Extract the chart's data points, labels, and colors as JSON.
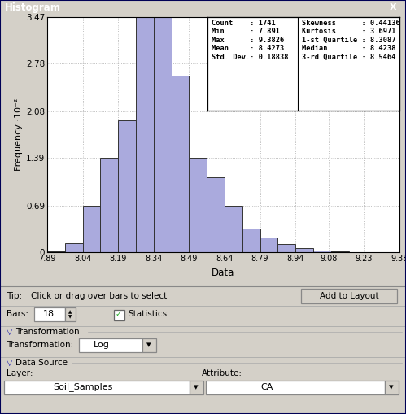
{
  "title": "Histogram",
  "ylabel": "Frequency ·10⁻²",
  "xlabel": "Data",
  "bar_color": "#aaaadd",
  "bar_edge_color": "#333333",
  "xlim": [
    7.89,
    9.38
  ],
  "ylim": [
    0,
    3.47
  ],
  "ytick_vals": [
    0,
    0.69,
    1.39,
    2.08,
    2.78,
    3.47
  ],
  "ytick_labels": [
    "0",
    "0.69",
    "1.39",
    "2.08",
    "2.78",
    "3.47"
  ],
  "xtick_vals": [
    7.89,
    8.04,
    8.19,
    8.34,
    8.49,
    8.64,
    8.79,
    8.94,
    9.08,
    9.23,
    9.38
  ],
  "xtick_labels": [
    "7.89",
    "8.04",
    "8.19",
    "8.34",
    "8.49",
    "8.64",
    "8.79",
    "8.94",
    "9.08",
    "9.23",
    "9.38"
  ],
  "bar_lefts": [
    7.89,
    7.965,
    8.04,
    8.115,
    8.19,
    8.265,
    8.34,
    8.415,
    8.49,
    8.565,
    8.64,
    8.715,
    8.79,
    8.865,
    8.94,
    9.015,
    9.09,
    9.165
  ],
  "bar_heights": [
    0.02,
    0.14,
    0.69,
    1.39,
    1.94,
    3.47,
    3.47,
    2.6,
    1.39,
    1.1,
    0.69,
    0.35,
    0.22,
    0.12,
    0.06,
    0.025,
    0.01,
    0.005
  ],
  "bar_width": 0.075,
  "stats": [
    [
      "Count",
      "1741",
      "Skewness",
      "0.44136"
    ],
    [
      "Min",
      "7.891",
      "Kurtosis",
      "3.6971"
    ],
    [
      "Max",
      "9.3826",
      "1-st Quartile",
      "8.3087"
    ],
    [
      "Mean",
      "8.4273",
      "Median",
      "8.4238"
    ],
    [
      "Std. Dev.",
      "0.18838",
      "3-rd Quartile",
      "8.5464"
    ]
  ],
  "bg_color": "#d4d0c8",
  "plot_bg": "#ffffff",
  "title_bg": "#0a246a",
  "title_fg": "#ffffff",
  "grid_color": "#999999",
  "tip_text": "Click or drag over bars to select",
  "bars_value": "18",
  "transformation_value": "Log",
  "layer_value": "Soil_Samples",
  "attribute_value": "CA"
}
